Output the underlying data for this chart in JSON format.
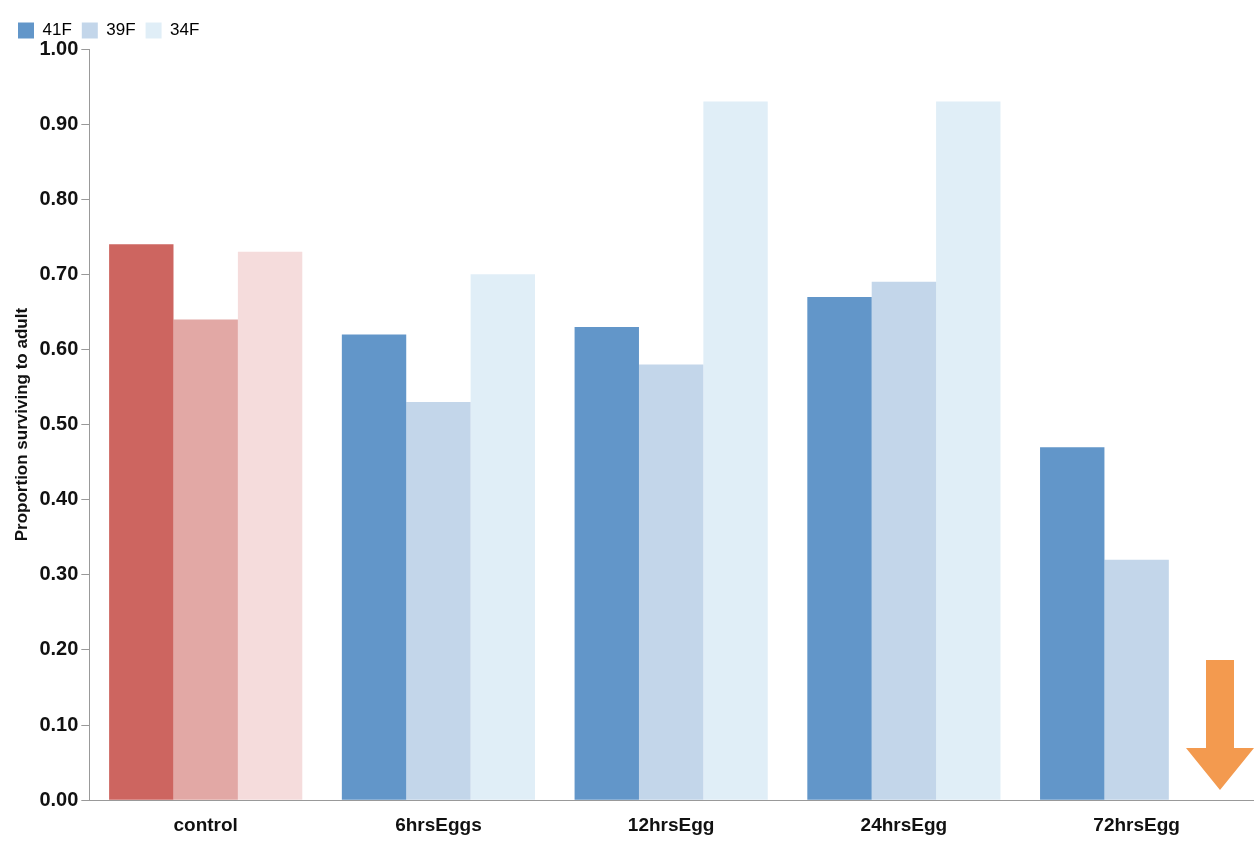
{
  "chart_data": {
    "type": "bar",
    "ylabel": "Proportion surviving to adult",
    "categories": [
      "control",
      "6hrsEggs",
      "12hrsEgg",
      "24hrsEgg",
      "72hrsEgg"
    ],
    "series": [
      {
        "name": "41F",
        "color": "#6296c9",
        "colors": [
          "#cd6560",
          "#6296c9",
          "#6296c9",
          "#6296c9",
          "#6296c9"
        ],
        "values": [
          0.74,
          0.62,
          0.63,
          0.67,
          0.47
        ]
      },
      {
        "name": "39F",
        "color": "#c3d6ea",
        "colors": [
          "#e2a8a5",
          "#c3d6ea",
          "#c3d6ea",
          "#c3d6ea",
          "#c3d6ea"
        ],
        "values": [
          0.64,
          0.53,
          0.58,
          0.69,
          0.32
        ]
      },
      {
        "name": "34F",
        "color": "#e0eef7",
        "colors": [
          "#f5dcdc",
          "#e0eef7",
          "#e0eef7",
          "#e0eef7",
          "#e0eef7"
        ],
        "values": [
          0.73,
          0.7,
          0.93,
          0.93,
          null
        ]
      }
    ],
    "ylim": [
      0,
      1
    ],
    "yticks": [
      {
        "value": 0,
        "label": "0.00"
      },
      {
        "value": 0.1,
        "label": "0.10"
      },
      {
        "value": 0.2,
        "label": "0.20"
      },
      {
        "value": 0.3,
        "label": "0.30"
      },
      {
        "value": 0.4,
        "label": "0.40"
      },
      {
        "value": 0.5,
        "label": "0.50"
      },
      {
        "value": 0.6,
        "label": "0.60"
      },
      {
        "value": 0.7,
        "label": "0.70"
      },
      {
        "value": 0.8,
        "label": "0.80"
      },
      {
        "value": 0.9,
        "label": "0.90"
      },
      {
        "value": 1,
        "label": "1.00"
      }
    ],
    "grid": false,
    "legend": "top left"
  }
}
